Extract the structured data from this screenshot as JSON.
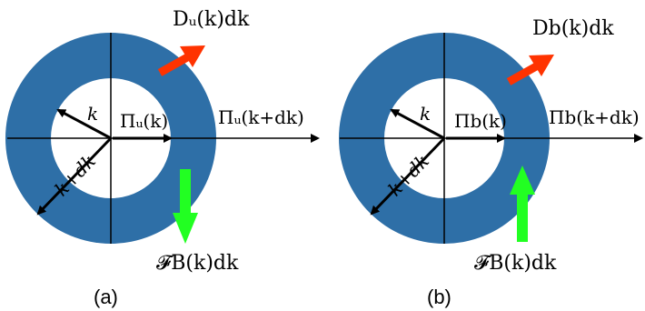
{
  "colors": {
    "annulus": "#2e6fa7",
    "disk_fill": "#ffffff",
    "axis": "#000000",
    "dissipation_arrow": "#ff3300",
    "forcing_arrow": "#22ff22"
  },
  "panels": [
    {
      "caption": "(a)",
      "label_k": "k",
      "label_k_dk": "k+dk",
      "pi_inner": "Πᵤ(k)",
      "pi_outer": "Πᵤ(k+dk)",
      "dissipation": "Dᵤ(k)dk",
      "forcing": "𝓕B(k)dk",
      "forcing_direction": "down"
    },
    {
      "caption": "(b)",
      "label_k": "k",
      "label_k_dk": "k+dk",
      "pi_inner": "Πb(k)",
      "pi_outer": "Πb(k+dk)",
      "dissipation": "Db(k)dk",
      "forcing": "𝓕B(k)dk",
      "forcing_direction": "up"
    }
  ]
}
